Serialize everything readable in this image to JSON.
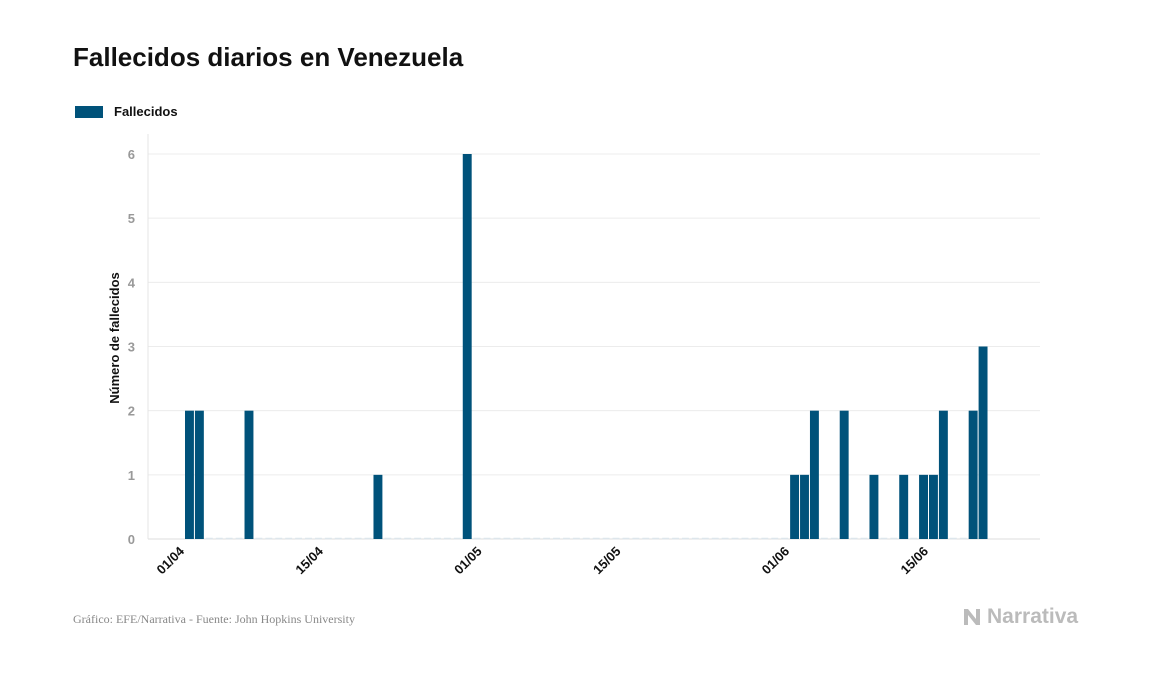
{
  "chart_data": {
    "type": "bar",
    "title": "Fallecidos diarios en Venezuela",
    "legend": [
      "Fallecidos"
    ],
    "legend_position": "top-left",
    "ylabel": "Número de fallecidos",
    "xlabel": "",
    "ylim": [
      0,
      6
    ],
    "yticks": [
      0,
      1,
      2,
      3,
      4,
      5,
      6
    ],
    "xtick_labels": [
      "01/04",
      "15/04",
      "01/05",
      "15/05",
      "01/06",
      "15/06"
    ],
    "xtick_days": [
      0,
      14,
      30,
      44,
      61,
      75
    ],
    "start_date": "01/04",
    "values": [
      2,
      2,
      0,
      0,
      0,
      0,
      2,
      0,
      0,
      0,
      0,
      0,
      0,
      0,
      0,
      0,
      0,
      0,
      0,
      1,
      0,
      0,
      0,
      0,
      0,
      0,
      0,
      0,
      6,
      0,
      0,
      0,
      0,
      0,
      0,
      0,
      0,
      0,
      0,
      0,
      0,
      0,
      0,
      0,
      0,
      0,
      0,
      0,
      0,
      0,
      0,
      0,
      0,
      0,
      0,
      0,
      0,
      0,
      0,
      0,
      0,
      1,
      1,
      2,
      0,
      0,
      2,
      0,
      0,
      1,
      0,
      0,
      1,
      0,
      1,
      1,
      2,
      0,
      0,
      2,
      3
    ],
    "color": "#00527a",
    "grid": true
  },
  "footer": "Gráfico: EFE/Narrativa - Fuente: John Hopkins University",
  "logo": "Narrativa"
}
